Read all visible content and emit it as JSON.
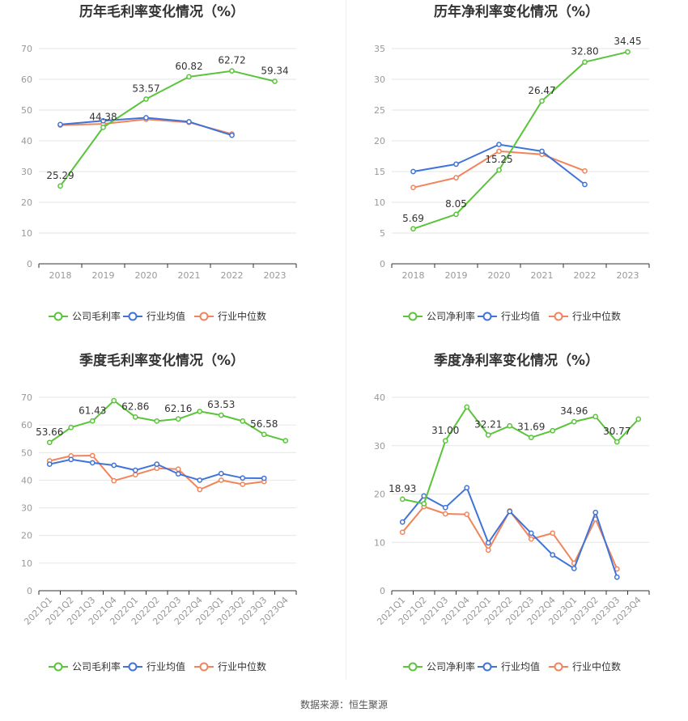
{
  "colors": {
    "company": "#5ac43a",
    "industry_avg": "#3f73d9",
    "industry_median": "#f2845c",
    "grid": "#e6e6e6",
    "axis": "#333333",
    "tick_text": "#999999",
    "title": "#333333"
  },
  "footer": {
    "source": "数据来源：恒生聚源"
  },
  "chart_data": [
    {
      "id": "annual-gross",
      "type": "line",
      "title": "历年毛利率变化情况（%）",
      "categories": [
        "2018",
        "2019",
        "2020",
        "2021",
        "2022",
        "2023"
      ],
      "ylim": [
        0,
        70
      ],
      "yticks": [
        0,
        10,
        20,
        30,
        40,
        50,
        60,
        70
      ],
      "legend_position": "bottom",
      "series": [
        {
          "name": "公司毛利率",
          "role": "company",
          "values": [
            25.29,
            44.38,
            53.57,
            60.82,
            62.72,
            59.34
          ]
        },
        {
          "name": "行业均值",
          "role": "industry_avg",
          "values": [
            45.3,
            46.5,
            47.5,
            46.2,
            41.8,
            null
          ]
        },
        {
          "name": "行业中位数",
          "role": "industry_median",
          "values": [
            45.1,
            45.5,
            47.0,
            46.0,
            42.2,
            null
          ]
        }
      ],
      "data_labels": [
        {
          "index": 0,
          "text": "25.29"
        },
        {
          "index": 1,
          "text": "44.38"
        },
        {
          "index": 2,
          "text": "53.57"
        },
        {
          "index": 3,
          "text": "60.82"
        },
        {
          "index": 4,
          "text": "62.72"
        },
        {
          "index": 5,
          "text": "59.34"
        }
      ]
    },
    {
      "id": "annual-net",
      "type": "line",
      "title": "历年净利率变化情况（%）",
      "categories": [
        "2018",
        "2019",
        "2020",
        "2021",
        "2022",
        "2023"
      ],
      "ylim": [
        0,
        35
      ],
      "yticks": [
        0,
        5,
        10,
        15,
        20,
        25,
        30,
        35
      ],
      "legend_position": "bottom",
      "series": [
        {
          "name": "公司净利率",
          "role": "company",
          "values": [
            5.69,
            8.05,
            15.25,
            26.47,
            32.8,
            34.45
          ]
        },
        {
          "name": "行业均值",
          "role": "industry_avg",
          "values": [
            15.0,
            16.2,
            19.4,
            18.3,
            12.9,
            null
          ]
        },
        {
          "name": "行业中位数",
          "role": "industry_median",
          "values": [
            12.4,
            14.0,
            18.3,
            17.8,
            15.1,
            null
          ]
        }
      ],
      "data_labels": [
        {
          "index": 0,
          "text": "5.69"
        },
        {
          "index": 1,
          "text": "8.05"
        },
        {
          "index": 2,
          "text": "15.25"
        },
        {
          "index": 3,
          "text": "26.47"
        },
        {
          "index": 4,
          "text": "32.80"
        },
        {
          "index": 5,
          "text": "34.45"
        }
      ]
    },
    {
      "id": "quarterly-gross",
      "type": "line",
      "title": "季度毛利率变化情况（%）",
      "categories": [
        "2021Q1",
        "2021Q2",
        "2021Q3",
        "2021Q4",
        "2022Q1",
        "2022Q2",
        "2022Q3",
        "2022Q4",
        "2023Q1",
        "2023Q2",
        "2023Q3",
        "2023Q4"
      ],
      "ylim": [
        0,
        70
      ],
      "yticks": [
        0,
        10,
        20,
        30,
        40,
        50,
        60,
        70
      ],
      "legend_position": "bottom",
      "series": [
        {
          "name": "公司毛利率",
          "role": "company",
          "values": [
            53.66,
            59.1,
            61.43,
            68.8,
            62.86,
            61.4,
            62.16,
            64.9,
            63.53,
            61.4,
            56.58,
            54.3
          ]
        },
        {
          "name": "行业均值",
          "role": "industry_avg",
          "values": [
            45.8,
            47.5,
            46.3,
            45.4,
            43.6,
            45.8,
            42.3,
            40.0,
            42.4,
            40.8,
            40.7,
            null
          ]
        },
        {
          "name": "行业中位数",
          "role": "industry_median",
          "values": [
            47.0,
            48.8,
            48.9,
            39.8,
            42.0,
            44.3,
            44.0,
            36.6,
            40.0,
            38.5,
            39.5,
            null
          ]
        }
      ],
      "data_labels": [
        {
          "index": 0,
          "text": "53.66"
        },
        {
          "index": 2,
          "text": "61.43"
        },
        {
          "index": 4,
          "text": "62.86"
        },
        {
          "index": 6,
          "text": "62.16"
        },
        {
          "index": 8,
          "text": "63.53"
        },
        {
          "index": 10,
          "text": "56.58"
        }
      ]
    },
    {
      "id": "quarterly-net",
      "type": "line",
      "title": "季度净利率变化情况（%）",
      "categories": [
        "2021Q1",
        "2021Q2",
        "2021Q3",
        "2021Q4",
        "2022Q1",
        "2022Q2",
        "2022Q3",
        "2022Q4",
        "2023Q1",
        "2023Q2",
        "2023Q3",
        "2023Q4"
      ],
      "ylim": [
        0,
        40
      ],
      "yticks": [
        0,
        10,
        20,
        30,
        40
      ],
      "legend_position": "bottom",
      "series": [
        {
          "name": "公司净利率",
          "role": "company",
          "values": [
            18.93,
            18.0,
            31.0,
            38.0,
            32.21,
            34.1,
            31.69,
            33.1,
            34.96,
            36.0,
            30.77,
            35.5
          ]
        },
        {
          "name": "行业均值",
          "role": "industry_avg",
          "values": [
            14.2,
            19.6,
            17.2,
            21.3,
            9.9,
            16.4,
            11.9,
            7.4,
            4.6,
            16.2,
            2.8,
            null
          ]
        },
        {
          "name": "行业中位数",
          "role": "industry_median",
          "values": [
            12.1,
            17.4,
            15.9,
            15.8,
            8.4,
            16.5,
            10.7,
            11.9,
            5.7,
            14.8,
            4.5,
            null
          ]
        }
      ],
      "data_labels": [
        {
          "index": 0,
          "text": "18.93"
        },
        {
          "index": 2,
          "text": "31.00"
        },
        {
          "index": 4,
          "text": "32.21"
        },
        {
          "index": 6,
          "text": "31.69"
        },
        {
          "index": 8,
          "text": "34.96"
        },
        {
          "index": 10,
          "text": "30.77"
        }
      ]
    }
  ]
}
